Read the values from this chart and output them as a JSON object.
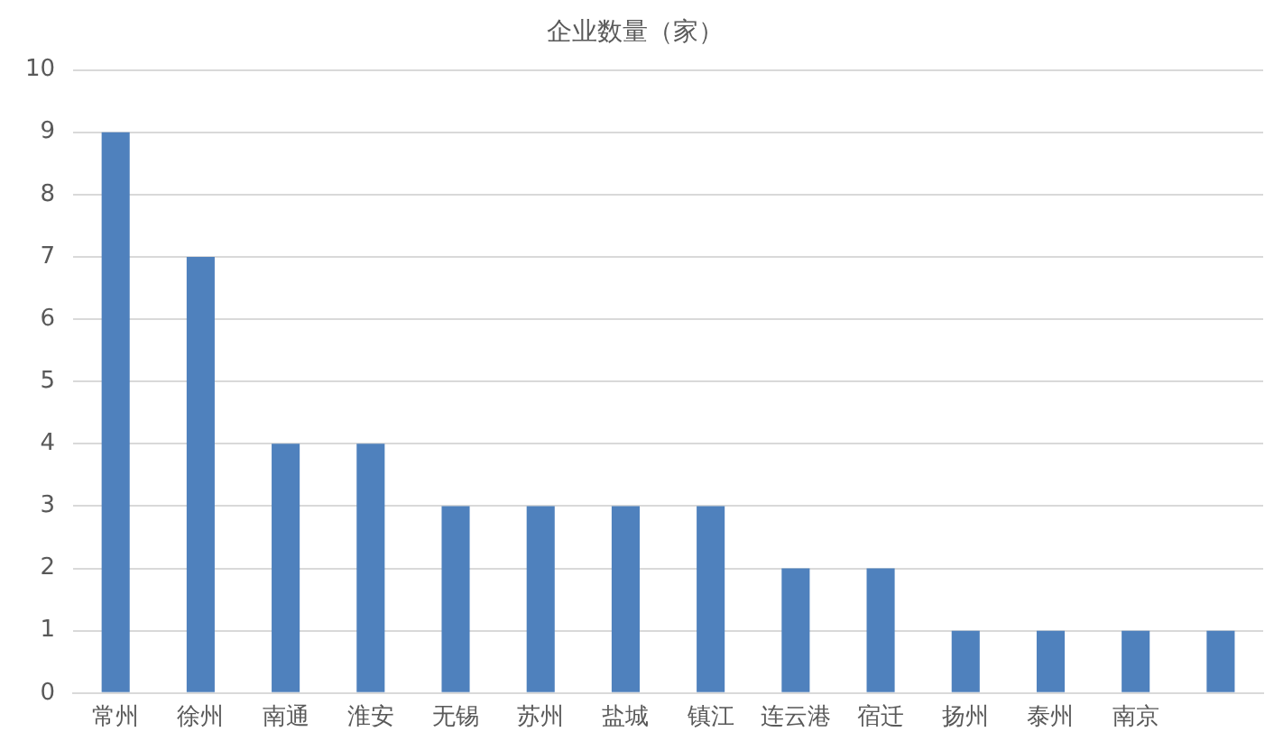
{
  "chart_data": {
    "type": "bar",
    "title": "企业数量（家）",
    "categories": [
      "常州",
      "徐州",
      "南通",
      "淮安",
      "无锡",
      "苏州",
      "盐城",
      "镇江",
      "连云港",
      "宿迁",
      "扬州",
      "泰州",
      "南京",
      null
    ],
    "values": [
      9,
      7,
      4,
      4,
      3,
      3,
      3,
      3,
      2,
      2,
      1,
      1,
      1,
      1
    ],
    "color": "#4f81bd",
    "ylim": [
      0,
      10
    ],
    "yticks": [
      0,
      1,
      2,
      3,
      4,
      5,
      6,
      7,
      8,
      9,
      10
    ],
    "grid": "y",
    "legend": false
  }
}
